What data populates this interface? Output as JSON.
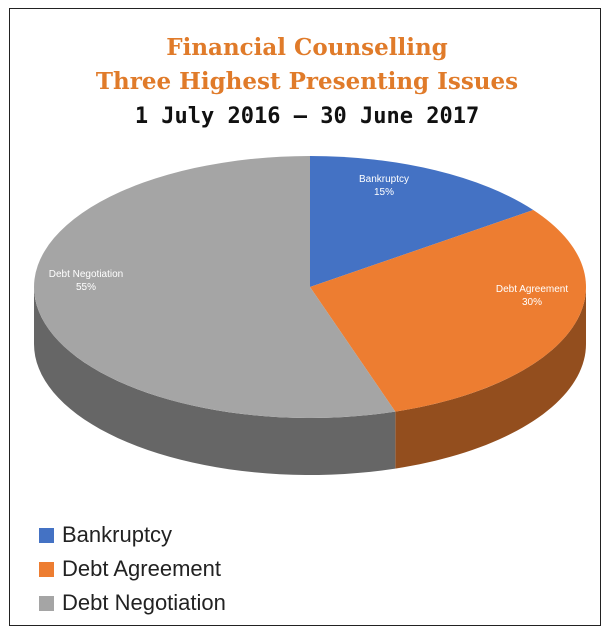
{
  "chart_data": {
    "type": "pie",
    "title_line1": "Financial Counselling",
    "title_line2": "Three Highest Presenting Issues",
    "subtitle": "1 July 2016 – 30 June 2017",
    "slices": [
      {
        "label": "Bankruptcy",
        "value": 15,
        "value_label": "15%",
        "color": "#4472c4"
      },
      {
        "label": "Debt Agreement",
        "value": 30,
        "value_label": "30%",
        "color": "#ed7d31"
      },
      {
        "label": "Debt Negotiation",
        "value": 55,
        "value_label": "55%",
        "color": "#a5a5a5"
      }
    ],
    "style": "3d",
    "legend_position": "bottom-left"
  },
  "colors": {
    "title": "#e07b2a",
    "subtitle": "#111111",
    "frame": "#222222"
  }
}
